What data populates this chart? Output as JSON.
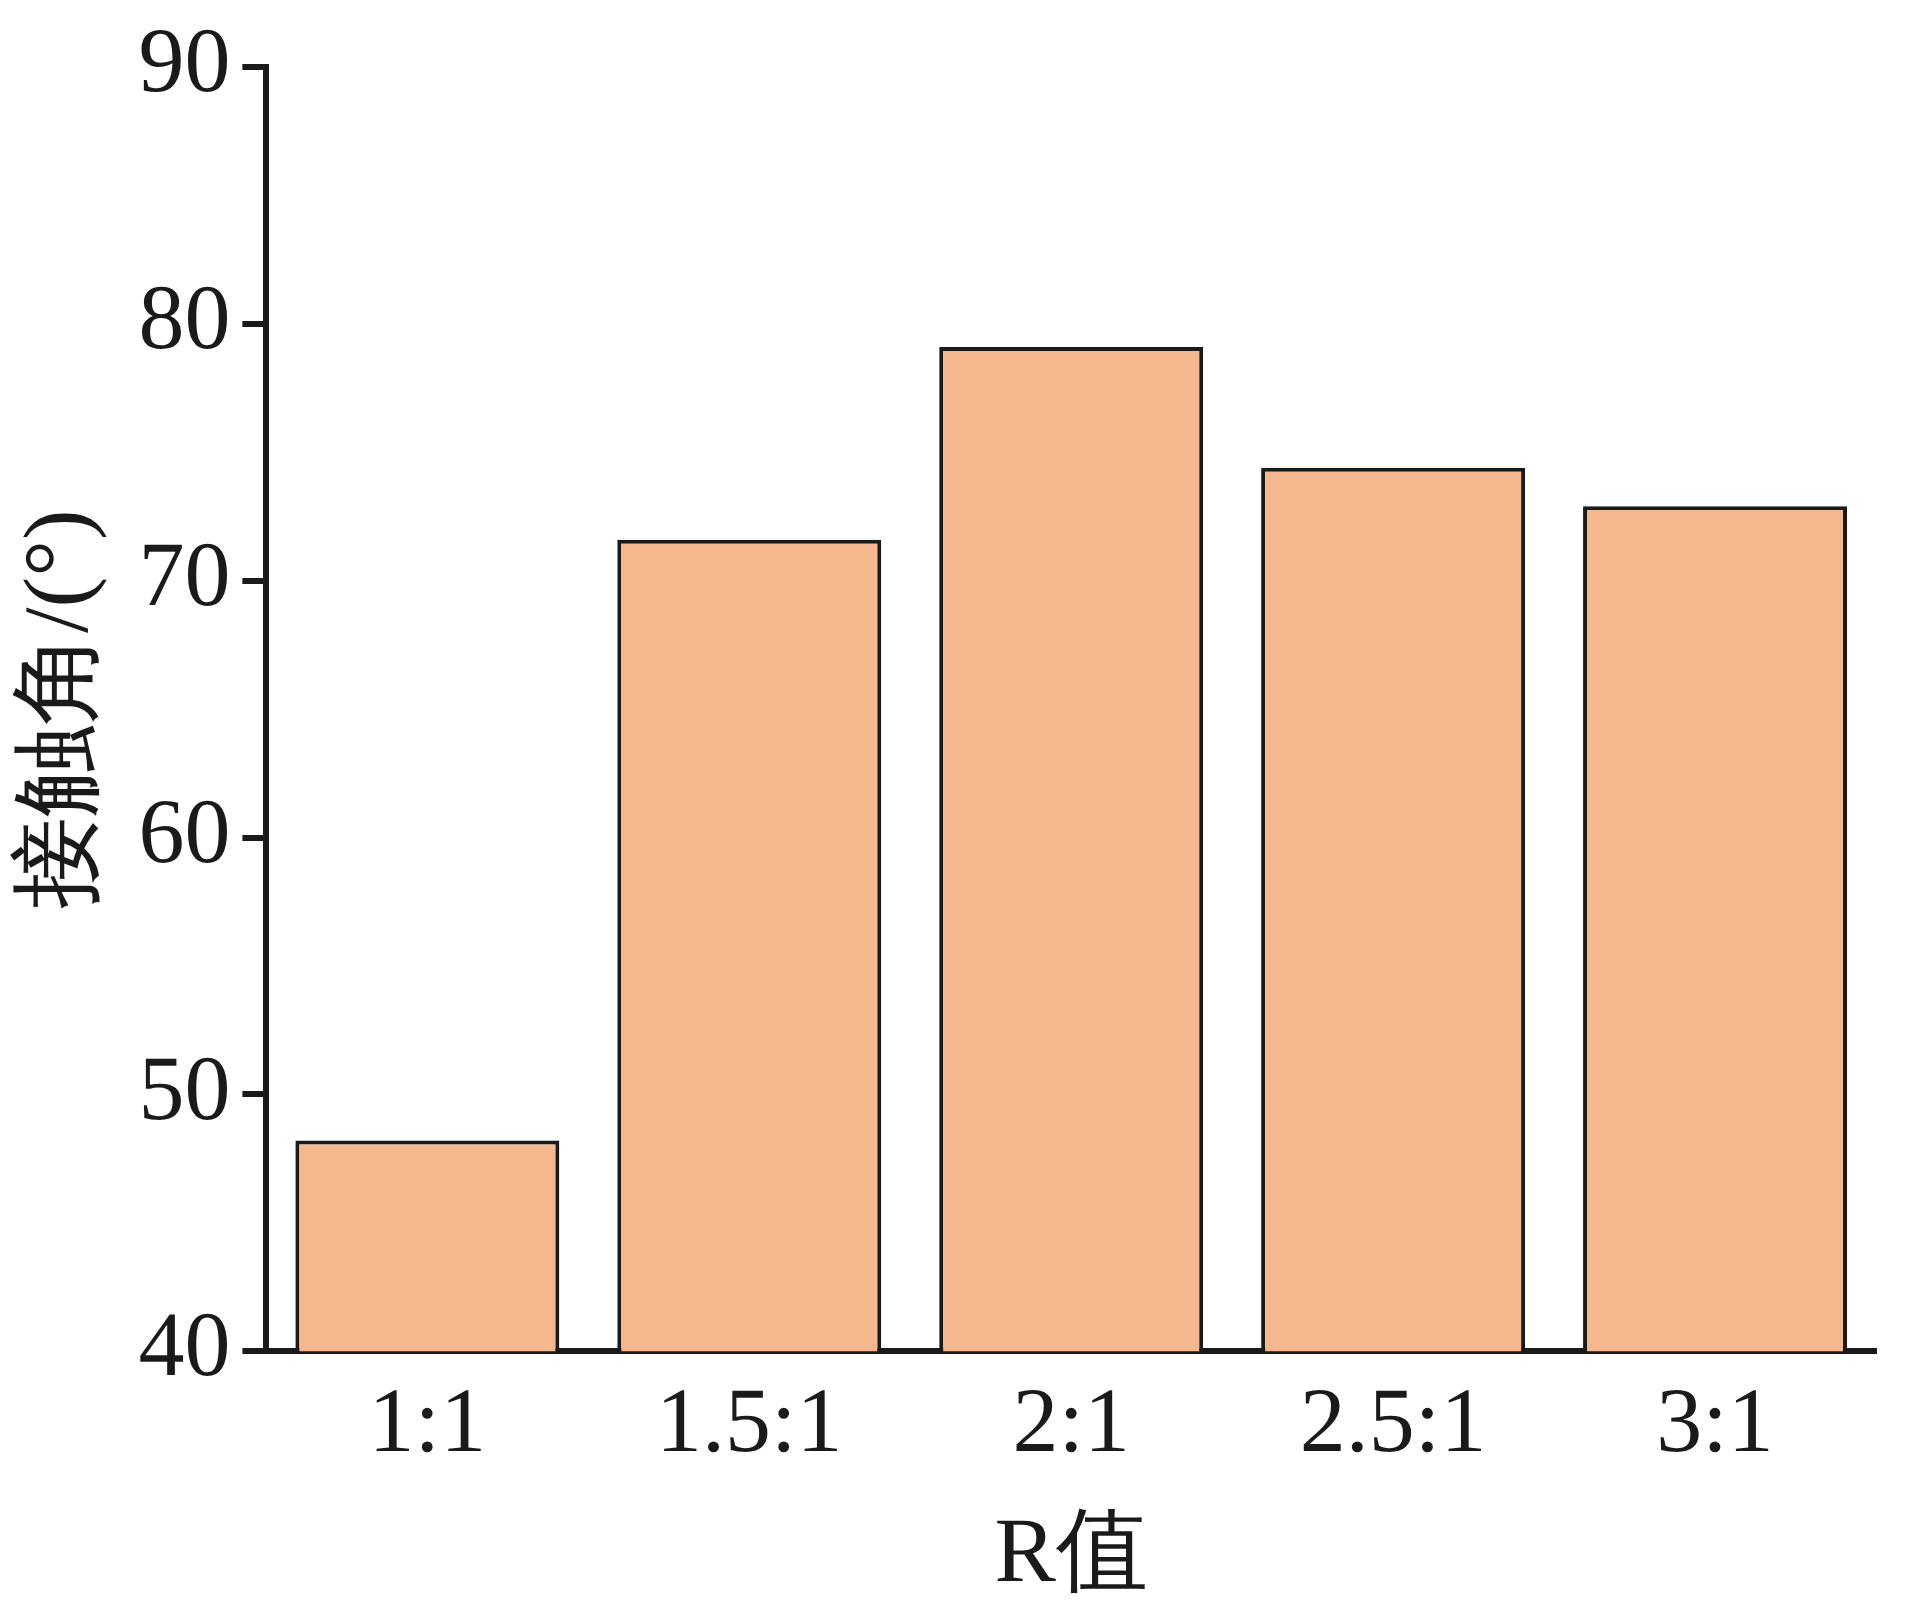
{
  "chart_data": {
    "type": "bar",
    "xlabel": "R值",
    "ylabel": "接触角/(°)",
    "categories": [
      "1:1",
      "1.5:1",
      "2:1",
      "2.5:1",
      "3:1"
    ],
    "values": [
      48.2,
      71.6,
      79.1,
      74.4,
      72.9
    ],
    "color": "#f4b78e",
    "ylim": [
      40,
      90
    ],
    "yticks": [
      40,
      50,
      60,
      70,
      80,
      90
    ]
  }
}
